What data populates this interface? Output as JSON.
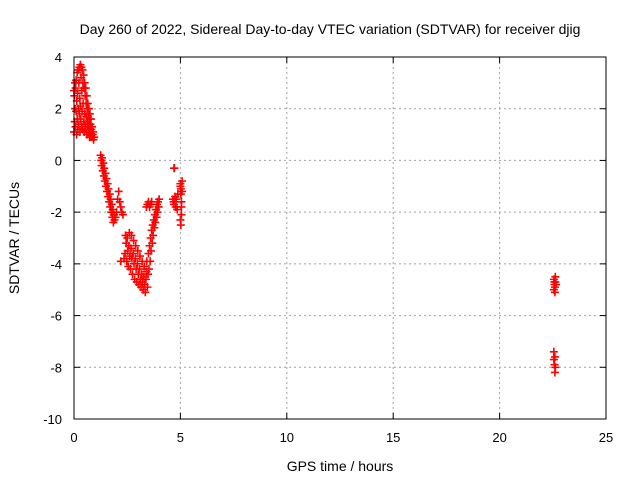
{
  "colors": {
    "series": "#ff0000",
    "grid": "#a0a0a0",
    "axes": "#000000"
  },
  "chart_data": {
    "type": "scatter",
    "title": "Day 260 of 2022, Sidereal Day-to-day VTEC variation (SDTVAR) for receiver djig",
    "xlabel": "GPS time / hours",
    "ylabel": "SDTVAR / TECUs",
    "xlim": [
      0,
      25
    ],
    "ylim": [
      -10,
      4
    ],
    "xticks": [
      "0",
      "5",
      "10",
      "15",
      "20",
      "25"
    ],
    "yticks": [
      "4",
      "2",
      "0",
      "-2",
      "-4",
      "-6",
      "-8",
      "-10"
    ],
    "grid": true,
    "legend": "none",
    "marker": "+",
    "series": [
      {
        "points": [
          [
            0.0,
            2.7
          ],
          [
            0.0,
            1.1
          ],
          [
            0.02,
            2.5
          ],
          [
            0.03,
            1.5
          ],
          [
            0.05,
            3.0
          ],
          [
            0.05,
            2.0
          ],
          [
            0.07,
            1.3
          ],
          [
            0.08,
            2.8
          ],
          [
            0.1,
            3.1
          ],
          [
            0.1,
            1.9
          ],
          [
            0.12,
            1.0
          ],
          [
            0.13,
            2.3
          ],
          [
            0.15,
            3.4
          ],
          [
            0.15,
            1.6
          ],
          [
            0.17,
            2.6
          ],
          [
            0.18,
            1.2
          ],
          [
            0.2,
            3.5
          ],
          [
            0.2,
            2.0
          ],
          [
            0.22,
            1.4
          ],
          [
            0.23,
            3.0
          ],
          [
            0.25,
            3.6
          ],
          [
            0.25,
            1.8
          ],
          [
            0.27,
            2.4
          ],
          [
            0.28,
            1.1
          ],
          [
            0.3,
            3.7
          ],
          [
            0.3,
            2.1
          ],
          [
            0.32,
            1.6
          ],
          [
            0.33,
            3.2
          ],
          [
            0.35,
            3.6
          ],
          [
            0.35,
            1.3
          ],
          [
            0.37,
            2.7
          ],
          [
            0.38,
            1.9
          ],
          [
            0.4,
            3.5
          ],
          [
            0.4,
            1.2
          ],
          [
            0.42,
            3.0
          ],
          [
            0.43,
            2.2
          ],
          [
            0.45,
            3.3
          ],
          [
            0.45,
            1.5
          ],
          [
            0.47,
            2.8
          ],
          [
            0.48,
            1.1
          ],
          [
            0.5,
            3.0
          ],
          [
            0.5,
            1.8
          ],
          [
            0.52,
            2.5
          ],
          [
            0.53,
            1.4
          ],
          [
            0.55,
            2.8
          ],
          [
            0.55,
            1.2
          ],
          [
            0.57,
            2.2
          ],
          [
            0.58,
            1.7
          ],
          [
            0.6,
            2.5
          ],
          [
            0.6,
            1.0
          ],
          [
            0.62,
            2.0
          ],
          [
            0.63,
            1.5
          ],
          [
            0.65,
            2.2
          ],
          [
            0.65,
            1.3
          ],
          [
            0.67,
            1.8
          ],
          [
            0.68,
            1.1
          ],
          [
            0.7,
            2.0
          ],
          [
            0.7,
            1.4
          ],
          [
            0.72,
            1.6
          ],
          [
            0.73,
            0.9
          ],
          [
            0.75,
            1.8
          ],
          [
            0.75,
            1.2
          ],
          [
            0.77,
            1.4
          ],
          [
            0.78,
            0.9
          ],
          [
            0.8,
            1.6
          ],
          [
            0.8,
            1.0
          ],
          [
            0.82,
            1.2
          ],
          [
            0.85,
            1.3
          ],
          [
            0.85,
            0.9
          ],
          [
            0.88,
            1.0
          ],
          [
            0.9,
            1.1
          ],
          [
            0.92,
            0.8
          ],
          [
            0.95,
            0.9
          ],
          [
            1.25,
            0.2
          ],
          [
            1.28,
            0.0
          ],
          [
            1.3,
            -0.2
          ],
          [
            1.32,
            0.1
          ],
          [
            1.35,
            -0.4
          ],
          [
            1.38,
            -0.1
          ],
          [
            1.4,
            -0.6
          ],
          [
            1.42,
            -0.3
          ],
          [
            1.45,
            -0.8
          ],
          [
            1.48,
            -0.5
          ],
          [
            1.5,
            -1.0
          ],
          [
            1.52,
            -0.7
          ],
          [
            1.55,
            -1.2
          ],
          [
            1.58,
            -0.9
          ],
          [
            1.6,
            -1.4
          ],
          [
            1.62,
            -1.1
          ],
          [
            1.65,
            -1.6
          ],
          [
            1.68,
            -1.3
          ],
          [
            1.7,
            -1.8
          ],
          [
            1.72,
            -1.5
          ],
          [
            1.75,
            -2.0
          ],
          [
            1.78,
            -1.7
          ],
          [
            1.8,
            -2.2
          ],
          [
            1.82,
            -1.9
          ],
          [
            1.85,
            -2.4
          ],
          [
            1.88,
            -2.1
          ],
          [
            1.9,
            -2.3
          ],
          [
            1.95,
            -2.2
          ],
          [
            2.0,
            -2.0
          ],
          [
            2.05,
            -1.5
          ],
          [
            2.1,
            -1.2
          ],
          [
            2.15,
            -1.6
          ],
          [
            2.2,
            -1.8
          ],
          [
            2.25,
            -2.0
          ],
          [
            2.3,
            -2.1
          ],
          [
            2.2,
            -3.9
          ],
          [
            2.35,
            -3.8
          ],
          [
            2.4,
            -3.6
          ],
          [
            2.42,
            -2.9
          ],
          [
            2.45,
            -3.2
          ],
          [
            2.48,
            -3.9
          ],
          [
            2.5,
            -3.0
          ],
          [
            2.52,
            -3.5
          ],
          [
            2.55,
            -4.1
          ],
          [
            2.58,
            -3.3
          ],
          [
            2.6,
            -2.8
          ],
          [
            2.62,
            -3.7
          ],
          [
            2.65,
            -4.2
          ],
          [
            2.68,
            -3.4
          ],
          [
            2.7,
            -2.9
          ],
          [
            2.72,
            -3.8
          ],
          [
            2.75,
            -4.4
          ],
          [
            2.78,
            -3.6
          ],
          [
            2.8,
            -3.1
          ],
          [
            2.82,
            -4.0
          ],
          [
            2.85,
            -4.6
          ],
          [
            2.88,
            -3.8
          ],
          [
            2.9,
            -3.3
          ],
          [
            2.92,
            -4.2
          ],
          [
            2.95,
            -4.7
          ],
          [
            2.98,
            -4.0
          ],
          [
            3.0,
            -3.5
          ],
          [
            3.02,
            -4.4
          ],
          [
            3.05,
            -4.8
          ],
          [
            3.08,
            -4.2
          ],
          [
            3.1,
            -3.7
          ],
          [
            3.12,
            -4.6
          ],
          [
            3.15,
            -4.9
          ],
          [
            3.18,
            -4.4
          ],
          [
            3.2,
            -3.9
          ],
          [
            3.22,
            -4.7
          ],
          [
            3.25,
            -5.0
          ],
          [
            3.28,
            -4.5
          ],
          [
            3.3,
            -4.1
          ],
          [
            3.32,
            -4.8
          ],
          [
            3.35,
            -5.1
          ],
          [
            3.38,
            -4.6
          ],
          [
            3.4,
            -4.3
          ],
          [
            3.42,
            -3.9
          ],
          [
            3.45,
            -4.9
          ],
          [
            3.48,
            -4.4
          ],
          [
            3.5,
            -3.6
          ],
          [
            3.52,
            -4.2
          ],
          [
            3.55,
            -3.3
          ],
          [
            3.58,
            -3.9
          ],
          [
            3.6,
            -3.0
          ],
          [
            3.62,
            -3.5
          ],
          [
            3.65,
            -2.7
          ],
          [
            3.68,
            -3.2
          ],
          [
            3.7,
            -2.5
          ],
          [
            3.72,
            -2.9
          ],
          [
            3.75,
            -2.3
          ],
          [
            3.78,
            -2.6
          ],
          [
            3.8,
            -2.1
          ],
          [
            3.82,
            -2.4
          ],
          [
            3.85,
            -1.9
          ],
          [
            3.88,
            -2.2
          ],
          [
            3.9,
            -1.7
          ],
          [
            3.92,
            -2.0
          ],
          [
            3.95,
            -1.6
          ],
          [
            3.98,
            -1.8
          ],
          [
            4.0,
            -1.5
          ],
          [
            3.4,
            -1.8
          ],
          [
            3.45,
            -1.7
          ],
          [
            3.5,
            -1.6
          ],
          [
            3.55,
            -1.8
          ],
          [
            3.6,
            -1.7
          ],
          [
            3.65,
            -1.6
          ],
          [
            4.7,
            -0.3
          ],
          [
            4.72,
            -0.3
          ],
          [
            4.65,
            -1.5
          ],
          [
            4.68,
            -1.6
          ],
          [
            4.7,
            -1.7
          ],
          [
            4.75,
            -1.4
          ],
          [
            4.78,
            -1.8
          ],
          [
            4.8,
            -1.5
          ],
          [
            4.85,
            -1.9
          ],
          [
            4.88,
            -1.3
          ],
          [
            5.0,
            -0.9
          ],
          [
            5.0,
            -1.0
          ],
          [
            5.02,
            -1.1
          ],
          [
            5.02,
            -1.3
          ],
          [
            5.05,
            -1.6
          ],
          [
            5.05,
            -1.8
          ],
          [
            5.0,
            -2.3
          ],
          [
            5.02,
            -2.5
          ],
          [
            5.05,
            -2.1
          ],
          [
            5.08,
            -0.8
          ],
          [
            5.08,
            -1.2
          ],
          [
            22.55,
            -4.6
          ],
          [
            22.58,
            -4.8
          ],
          [
            22.6,
            -4.9
          ],
          [
            22.62,
            -4.7
          ],
          [
            22.55,
            -5.0
          ],
          [
            22.6,
            -5.1
          ],
          [
            22.62,
            -4.5
          ],
          [
            22.65,
            -4.8
          ],
          [
            22.58,
            -4.7
          ],
          [
            22.55,
            -7.4
          ],
          [
            22.6,
            -7.6
          ],
          [
            22.58,
            -7.9
          ],
          [
            22.62,
            -8.0
          ],
          [
            22.6,
            -8.2
          ],
          [
            22.55,
            -7.7
          ]
        ]
      }
    ]
  }
}
